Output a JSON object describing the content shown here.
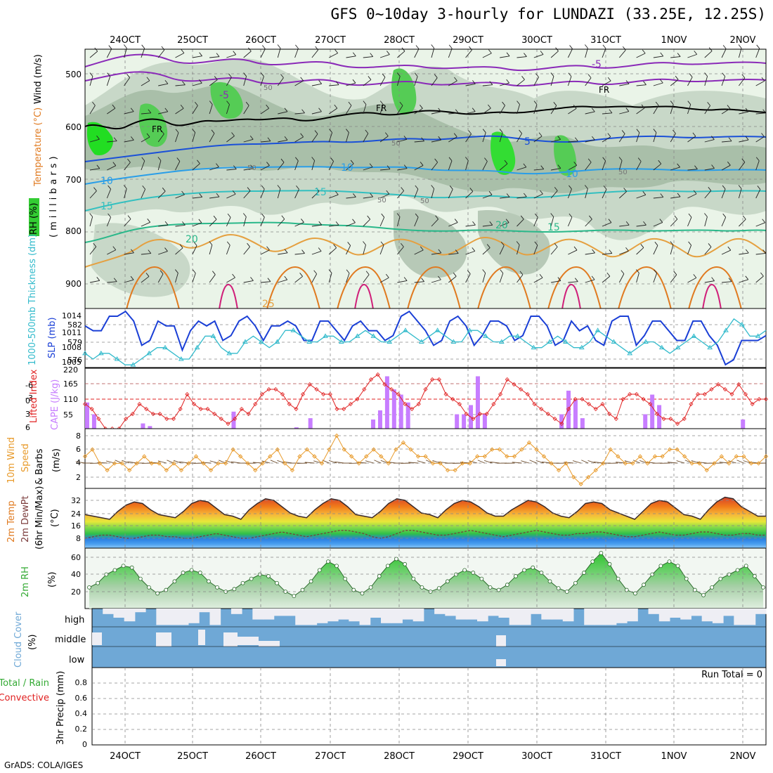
{
  "title": "GFS 0~10day 3-hourly for LUNDAZI (33.25E, 12.25S)",
  "footer": "GrADS: COLA/IGES",
  "time_labels": [
    "24OCT",
    "25OCT",
    "26OCT",
    "27OCT",
    "28OCT",
    "29OCT",
    "30OCT",
    "31OCT",
    "1NOV",
    "2NOV"
  ],
  "colors": {
    "slp": "#1a3fd6",
    "thickness": "#33bbcc",
    "cape": "#c77dff",
    "lifted": "#e02020",
    "wind": "#e89a2a",
    "barb": "#6b4a2a",
    "rh": "#33aa33",
    "cloud": "#6fa8d6",
    "cloud_clear": "#eeeef4"
  },
  "panels": {
    "upper": {
      "ylabels": [
        "Wind (m/s)",
        "Temperature (°C)",
        "RH (%)",
        "(millibars)"
      ],
      "pressure_ticks": [
        "500",
        "600",
        "700",
        "800",
        "900"
      ],
      "contour_labels": [
        "-5",
        "-5",
        "FR",
        "FR",
        "FR",
        "5",
        "10",
        "10",
        "10",
        "15",
        "15",
        "20",
        "15",
        "20",
        "25",
        "50",
        "50",
        "50",
        "50",
        "50",
        "50"
      ]
    },
    "slp": {
      "ylabel_left": "1000-500mb Thickness (dm)",
      "ylabel_right": "SLP (mb)",
      "left_ticks": [
        "582",
        "579",
        "576"
      ],
      "right_ticks": [
        "1014",
        "1011",
        "1008",
        "1005"
      ]
    },
    "cape": {
      "ylabel_left": "Lifted Index",
      "ylabel_right": "CAPE (J/kg)",
      "left_ticks": [
        "-6",
        "-3",
        "0",
        "3",
        "6"
      ],
      "right_ticks": [
        "220",
        "165",
        "110",
        "55"
      ]
    },
    "wind": {
      "ylabel_1": "10m Wind",
      "ylabel_2": "Speed",
      "ylabel_3": "& Barbs",
      "units": "(m/s)",
      "ticks": [
        "8",
        "6",
        "4",
        "2"
      ]
    },
    "temp": {
      "ylabel_1": "2m Temp",
      "ylabel_2": "2m DewPt",
      "ylabel_3": "(6hr Min/Max)",
      "units": "(°C)",
      "ticks": [
        "32",
        "24",
        "16",
        "8"
      ]
    },
    "rh2m": {
      "ylabel": "2m RH",
      "units": "(%)",
      "ticks": [
        "60",
        "40",
        "20"
      ]
    },
    "cloud": {
      "ylabel": "Cloud Cover",
      "units": "(%)",
      "levels": [
        "high",
        "middle",
        "low"
      ]
    },
    "precip": {
      "ylabel_1": "Total / Rain",
      "ylabel_2": "Convective",
      "ylabel_3": "3hr Precip (mm)",
      "ticks": [
        "0.8",
        "0.6",
        "0.4",
        "0.2",
        "0"
      ],
      "run_total": "Run Total = 0"
    }
  },
  "chart_data": [
    {
      "type": "line",
      "title": "SLP and 1000-500mb thickness",
      "series": [
        {
          "name": "SLP (mb)",
          "values": [
            1012,
            1011,
            1011,
            1014,
            1014,
            1015,
            1013,
            1008,
            1009,
            1013,
            1012,
            1012,
            1007,
            1011,
            1013,
            1012,
            1013,
            1009,
            1010,
            1013,
            1014,
            1012,
            1009,
            1012,
            1012,
            1013,
            1012,
            1009,
            1009,
            1013,
            1013,
            1011,
            1009,
            1012,
            1013,
            1011,
            1011,
            1009,
            1010,
            1014,
            1015,
            1013,
            1011,
            1008,
            1009,
            1013,
            1014,
            1012,
            1008,
            1010,
            1013,
            1013,
            1012,
            1009,
            1010,
            1014,
            1014,
            1012,
            1008,
            1009,
            1013,
            1011,
            1012,
            1009,
            1008,
            1013,
            1014,
            1014,
            1008,
            1010,
            1013,
            1013,
            1011,
            1009,
            1009,
            1013,
            1013,
            1010,
            1008,
            1004,
            1005,
            1009,
            1009,
            1009,
            1010
          ]
        },
        {
          "name": "1000-500mb thickness (dm)",
          "values": [
            577,
            576,
            577,
            577,
            576,
            575,
            575,
            576,
            577,
            578,
            578,
            577,
            576,
            576,
            578,
            580,
            580,
            578,
            577,
            577,
            579,
            580,
            579,
            578,
            579,
            581,
            581,
            580,
            579,
            579,
            580,
            580,
            579,
            579,
            580,
            581,
            580,
            579,
            579,
            580,
            581,
            580,
            579,
            580,
            581,
            580,
            579,
            579,
            581,
            581,
            580,
            579,
            579,
            580,
            580,
            579,
            578,
            578,
            579,
            580,
            579,
            578,
            578,
            579,
            581,
            580,
            579,
            578,
            577,
            578,
            579,
            579,
            578,
            577,
            578,
            579,
            580,
            579,
            578,
            579,
            581,
            583,
            582,
            580,
            580,
            581
          ]
        }
      ]
    },
    {
      "type": "bar",
      "title": "CAPE (J/kg) and Lifted Index",
      "series": [
        {
          "name": "CAPE (J/kg)",
          "values": [
            100,
            55,
            0,
            0,
            0,
            0,
            0,
            0,
            20,
            10,
            0,
            0,
            0,
            0,
            0,
            0,
            0,
            0,
            0,
            0,
            0,
            65,
            0,
            0,
            0,
            0,
            0,
            0,
            0,
            0,
            5,
            0,
            40,
            0,
            0,
            0,
            0,
            0,
            0,
            0,
            0,
            35,
            70,
            200,
            150,
            130,
            100,
            0,
            0,
            0,
            0,
            0,
            0,
            55,
            55,
            90,
            200,
            55,
            0,
            0,
            0,
            0,
            0,
            0,
            0,
            0,
            0,
            0,
            55,
            145,
            110,
            40,
            0,
            0,
            0,
            0,
            0,
            0,
            0,
            0,
            55,
            130,
            90,
            0,
            0,
            0,
            0,
            0,
            0,
            0,
            0,
            0,
            0,
            0,
            35,
            0,
            0,
            0
          ]
        },
        {
          "name": "Lifted Index",
          "values": [
            1,
            2,
            4,
            6,
            6,
            6,
            4,
            3,
            1,
            2,
            3,
            3,
            4,
            4,
            2,
            -1,
            1,
            2,
            2,
            3,
            4,
            5,
            4,
            2,
            3,
            1,
            -1,
            -2,
            -2,
            -1,
            1,
            2,
            -1,
            -3,
            -2,
            -1,
            -1,
            2,
            2,
            1,
            0,
            -2,
            -4,
            -5,
            -3,
            -2,
            -1,
            1,
            2,
            1,
            -2,
            -4,
            -4,
            -1,
            0,
            1,
            3,
            4,
            3,
            3,
            1,
            -1,
            -4,
            -3,
            -2,
            -1,
            1,
            2,
            3,
            4,
            5,
            2,
            0,
            0,
            1,
            2,
            1,
            3,
            4,
            0,
            -1,
            -1,
            0,
            1,
            3,
            4,
            4,
            5,
            4,
            1,
            -1,
            -1,
            -2,
            -3,
            -2,
            -1,
            -3,
            -1,
            1,
            0,
            0
          ]
        }
      ]
    },
    {
      "type": "line",
      "title": "10m Wind Speed",
      "series": [
        {
          "name": "10m Wind Speed (m/s)",
          "values": [
            5,
            6,
            4,
            3,
            4,
            4,
            3,
            4,
            5,
            4,
            4,
            3,
            4,
            3,
            4,
            5,
            4,
            3,
            4,
            4,
            6,
            5,
            4,
            3,
            4,
            5,
            6,
            4,
            3,
            5,
            6,
            5,
            4,
            6,
            8,
            6,
            5,
            4,
            5,
            6,
            5,
            4,
            6,
            7,
            6,
            5,
            5,
            4,
            4,
            3,
            3,
            4,
            4,
            5,
            5,
            6,
            6,
            5,
            5,
            6,
            7,
            6,
            5,
            4,
            3,
            4,
            2,
            1,
            2,
            3,
            4,
            6,
            5,
            4,
            4,
            5,
            4,
            5,
            5,
            6,
            6,
            5,
            4,
            4,
            3,
            4,
            5,
            4,
            5,
            5,
            4,
            4,
            5
          ]
        }
      ]
    },
    {
      "type": "line",
      "title": "2m Temp and DewPt",
      "series": [
        {
          "name": "2m Temp (°C)",
          "values": [
            23,
            22,
            21,
            20,
            25,
            29,
            31,
            30,
            26,
            23,
            22,
            21,
            25,
            30,
            32,
            31,
            27,
            23,
            22,
            20,
            26,
            30,
            33,
            32,
            28,
            24,
            22,
            21,
            26,
            30,
            33,
            32,
            28,
            23,
            22,
            21,
            25,
            30,
            33,
            32,
            28,
            24,
            23,
            21,
            26,
            30,
            32,
            31,
            28,
            24,
            22,
            22,
            26,
            29,
            32,
            31,
            28,
            24,
            22,
            21,
            25,
            30,
            31,
            30,
            26,
            24,
            22,
            20,
            25,
            30,
            32,
            31,
            27,
            23,
            22,
            20,
            26,
            31,
            34,
            33,
            28,
            25,
            22,
            22
          ]
        },
        {
          "name": "2m DewPt (°C)",
          "values": [
            8,
            9,
            10,
            10,
            9,
            8,
            8,
            9,
            10,
            10,
            9,
            9,
            8,
            8,
            9,
            10,
            11,
            10,
            9,
            8,
            8,
            9,
            10,
            11,
            12,
            11,
            10,
            9,
            10,
            11,
            12,
            13,
            13,
            12,
            11,
            9,
            8,
            9,
            11,
            13,
            13,
            12,
            11,
            10,
            10,
            11,
            12,
            13,
            12,
            11,
            10,
            9,
            10,
            11,
            12,
            13,
            12,
            11,
            10,
            10,
            11,
            11,
            12,
            12,
            11,
            10,
            9,
            9,
            10,
            11,
            12,
            11,
            10,
            10,
            11,
            12,
            12,
            11,
            10,
            10,
            11,
            11,
            10,
            10
          ]
        }
      ]
    },
    {
      "type": "area",
      "title": "2m RH",
      "series": [
        {
          "name": "2m RH (%)",
          "values": [
            25,
            30,
            40,
            45,
            50,
            48,
            35,
            25,
            18,
            22,
            32,
            42,
            45,
            42,
            32,
            25,
            20,
            23,
            30,
            35,
            40,
            38,
            30,
            20,
            15,
            22,
            32,
            45,
            55,
            50,
            35,
            22,
            18,
            25,
            38,
            50,
            58,
            52,
            35,
            25,
            20,
            24,
            32,
            40,
            45,
            42,
            35,
            25,
            22,
            28,
            38,
            45,
            48,
            42,
            32,
            24,
            20,
            30,
            42,
            55,
            65,
            52,
            35,
            22,
            18,
            28,
            40,
            50,
            55,
            50,
            35,
            22,
            16,
            25,
            35,
            40,
            45,
            50,
            38,
            25
          ]
        }
      ]
    },
    {
      "type": "bar",
      "title": "3hr Precip",
      "series": [
        {
          "name": "3hr Precip (mm)",
          "values": [
            0,
            0,
            0,
            0,
            0,
            0,
            0,
            0,
            0,
            0
          ]
        }
      ]
    }
  ]
}
